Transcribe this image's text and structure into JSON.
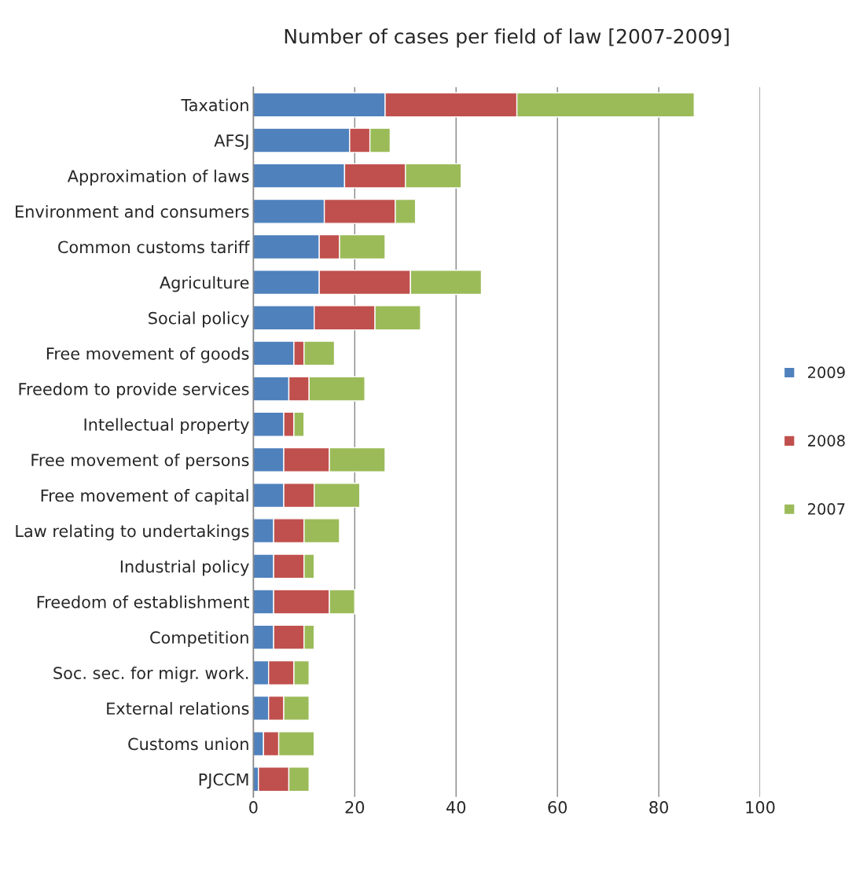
{
  "chart_data": {
    "type": "bar",
    "orientation": "horizontal",
    "stacked": true,
    "title": "Number of cases per field of law [2007-2009]",
    "categories": [
      "Taxation",
      "AFSJ",
      "Approximation of laws",
      "Environment and consumers",
      "Common customs tariff",
      "Agriculture",
      "Social policy",
      "Free movement of goods",
      "Freedom to provide services",
      "Intellectual property",
      "Free movement of persons",
      "Free movement of capital",
      "Law relating to undertakings",
      "Industrial policy",
      "Freedom of establishment",
      "Competition",
      "Soc. sec. for migr. work.",
      "External relations",
      "Customs union",
      "PJCCM"
    ],
    "series": [
      {
        "name": "2009",
        "color": "#4f81bd",
        "values": [
          26,
          19,
          18,
          14,
          13,
          13,
          12,
          8,
          7,
          6,
          6,
          6,
          4,
          4,
          4,
          4,
          3,
          3,
          2,
          1
        ]
      },
      {
        "name": "2008",
        "color": "#c0504d",
        "values": [
          26,
          4,
          12,
          14,
          4,
          18,
          12,
          2,
          4,
          2,
          9,
          6,
          6,
          6,
          11,
          6,
          5,
          3,
          3,
          6
        ]
      },
      {
        "name": "2007",
        "color": "#9bbb59",
        "values": [
          35,
          4,
          11,
          4,
          9,
          14,
          9,
          6,
          11,
          2,
          11,
          9,
          7,
          2,
          5,
          2,
          3,
          5,
          7,
          4
        ]
      }
    ],
    "xlim": [
      0,
      100
    ],
    "xticks": [
      0,
      20,
      40,
      60,
      80,
      100
    ],
    "grid": "x",
    "legend": "right"
  }
}
